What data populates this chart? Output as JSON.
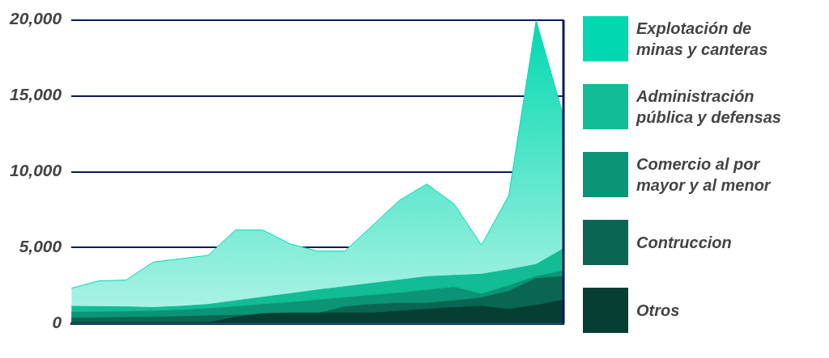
{
  "chart_data": {
    "type": "area",
    "categories": [
      null,
      null,
      null,
      null,
      null,
      null,
      null,
      null,
      null,
      null,
      null,
      null,
      null,
      null,
      null,
      null,
      null,
      null,
      null
    ],
    "series": [
      {
        "name": "Explotación de minas y canteras",
        "color": "#00d9b0",
        "values": [
          2330,
          2810,
          2870,
          4050,
          4270,
          4490,
          6160,
          6160,
          5250,
          4770,
          4770,
          6440,
          8120,
          9190,
          7880,
          5170,
          8440,
          19950,
          13660
        ]
      },
      {
        "name": "Administración pública y defensas",
        "color": "#12bc94",
        "values": [
          1140,
          1120,
          1100,
          1060,
          1140,
          1260,
          1500,
          1740,
          1970,
          2210,
          2430,
          2650,
          2870,
          3090,
          3170,
          3250,
          3550,
          3890,
          4930
        ]
      },
      {
        "name": "Comercio al por mayor y al menor",
        "color": "#0b9476",
        "values": [
          740,
          760,
          780,
          820,
          880,
          980,
          1100,
          1260,
          1380,
          1540,
          1700,
          1860,
          2010,
          2190,
          2390,
          1940,
          2490,
          3090,
          3470
        ]
      },
      {
        "name": "Contruccion",
        "color": "#0a6652",
        "values": [
          360,
          380,
          400,
          420,
          460,
          500,
          540,
          580,
          620,
          660,
          1100,
          1260,
          1340,
          1340,
          1500,
          1700,
          2130,
          2970,
          3090
        ]
      },
      {
        "name": "Otros",
        "color": "#053f33",
        "values": [
          60,
          60,
          60,
          60,
          60,
          60,
          420,
          660,
          700,
          700,
          700,
          700,
          820,
          940,
          1060,
          1140,
          940,
          1200,
          1540
        ]
      }
    ],
    "ylim": [
      0,
      20000
    ],
    "yticks": [
      0,
      {
        "value": 5000,
        "label": "5,000"
      },
      {
        "value": 10000,
        "label": "10,000"
      },
      {
        "value": 15000,
        "label": "15,000"
      },
      {
        "value": 20000,
        "label": "20,000"
      }
    ],
    "grid": "y",
    "legend": "right",
    "tick_labels": "y"
  }
}
